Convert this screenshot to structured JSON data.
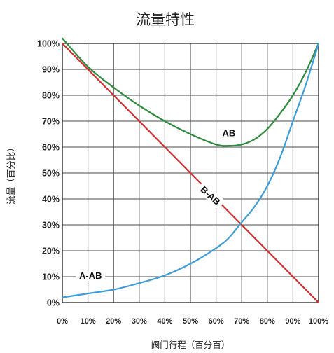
{
  "chart_data": {
    "type": "line",
    "title": "流量特性",
    "xlabel": "阀门行程（百分百）",
    "ylabel": "流量（百分比）",
    "xlim": [
      0,
      100
    ],
    "ylim": [
      0,
      100
    ],
    "grid": true,
    "x_ticks": [
      "0%",
      "10%",
      "20%",
      "30%",
      "40%",
      "50%",
      "60%",
      "70%",
      "80%",
      "90%",
      "100%"
    ],
    "y_ticks": [
      "0%",
      "10%",
      "20%",
      "30%",
      "40%",
      "50%",
      "60%",
      "70%",
      "80%",
      "90%",
      "100%"
    ],
    "series": [
      {
        "name": "AB",
        "color": "#2e8b3e",
        "x": [
          0,
          10,
          20,
          30,
          40,
          50,
          60,
          65,
          70,
          75,
          80,
          85,
          90,
          95,
          100
        ],
        "y": [
          102,
          91,
          83,
          76,
          70,
          65,
          61,
          60.5,
          61,
          63,
          67,
          73,
          80,
          89,
          100
        ]
      },
      {
        "name": "B-AB",
        "color": "#d03030",
        "x": [
          0,
          100
        ],
        "y": [
          100,
          0
        ]
      },
      {
        "name": "A-AB",
        "color": "#3d9dd6",
        "x": [
          0,
          10,
          20,
          30,
          40,
          50,
          60,
          65,
          70,
          75,
          80,
          85,
          90,
          95,
          100
        ],
        "y": [
          2,
          3.5,
          5,
          7.5,
          10.5,
          15,
          21,
          25,
          31,
          37,
          45,
          56,
          70,
          84,
          100
        ]
      }
    ],
    "annotations": [
      {
        "text": "AB",
        "x": 65,
        "y": 65
      },
      {
        "text": "B-AB",
        "x": 57.5,
        "y": 41
      },
      {
        "text": "A-AB",
        "x": 11,
        "y": 10
      }
    ]
  }
}
